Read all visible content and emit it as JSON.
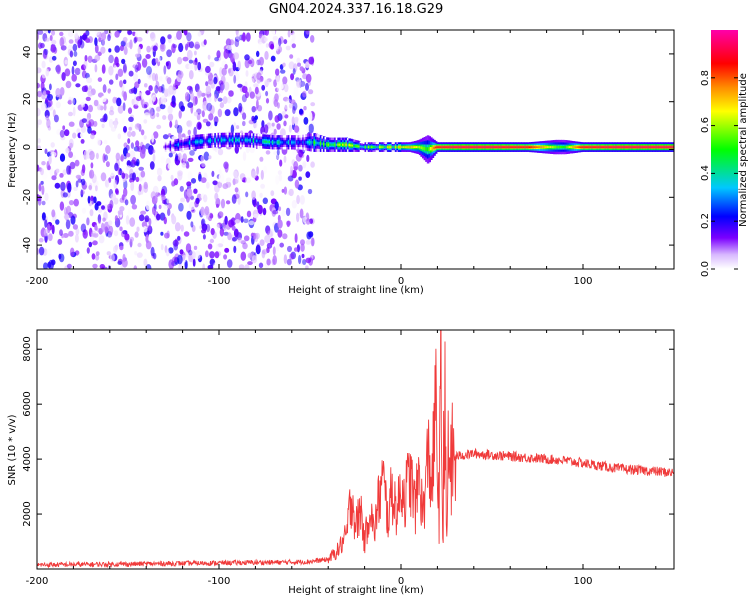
{
  "title": "GN04.2024.337.16.18.G29",
  "chart_data": [
    {
      "type": "heatmap",
      "xlabel": "Height of straight line (km)",
      "ylabel": "Frequency (Hz)",
      "xlim": [
        -200,
        150
      ],
      "ylim": [
        -50,
        50
      ],
      "xticks": [
        "-200",
        "-100",
        "0",
        "100"
      ],
      "yticks": [
        "-40",
        "-20",
        "0",
        "20",
        "40"
      ],
      "colorbar": {
        "label": "Normalized spectral amplitude",
        "range": [
          0,
          1
        ],
        "ticks": [
          "0.0",
          "0.2",
          "0.4",
          "0.6",
          "0.8"
        ],
        "colors": [
          "#ffffff",
          "#7b00ff",
          "#0000ff",
          "#00c8ff",
          "#00ff00",
          "#ffff00",
          "#ff8c00",
          "#ff0000",
          "#ff00aa"
        ]
      },
      "noise_region_x": [
        -200,
        -48
      ],
      "ridge_profile": {
        "x": [
          -130,
          -115,
          -100,
          -85,
          -70,
          -55,
          -48,
          -40,
          -30,
          -20,
          -10,
          0,
          5,
          10,
          15,
          20,
          30,
          50,
          70,
          85,
          90,
          100,
          120,
          150
        ],
        "center_hz": [
          1,
          3,
          4,
          4,
          3,
          3,
          3,
          2,
          2,
          1,
          1,
          1,
          1,
          1,
          0,
          1,
          1,
          1,
          1,
          1,
          1,
          1,
          1,
          1
        ],
        "halfwidth_hz": [
          2,
          3,
          3,
          3,
          3,
          3,
          4,
          3,
          3,
          2,
          2,
          2,
          2,
          3,
          6,
          2,
          2,
          2,
          2,
          3,
          3,
          2,
          2,
          2
        ],
        "amplitude": [
          0.2,
          0.3,
          0.3,
          0.35,
          0.35,
          0.3,
          0.4,
          0.45,
          0.55,
          0.5,
          0.55,
          0.6,
          0.7,
          0.6,
          0.5,
          0.9,
          0.95,
          0.95,
          0.9,
          0.55,
          0.5,
          0.9,
          0.95,
          0.95
        ]
      }
    },
    {
      "type": "line",
      "xlabel": "Height of straight line (km)",
      "ylabel": "SNR (10 * v/v)",
      "xlim": [
        -200,
        150
      ],
      "ylim": [
        0,
        8700
      ],
      "xticks": [
        "-200",
        "-100",
        "0",
        "100"
      ],
      "yticks": [
        "2000",
        "4000",
        "6000",
        "8000"
      ],
      "color": "#f03a3a",
      "series": [
        {
          "x": [
            -200,
            -150,
            -100,
            -60,
            -50,
            -40,
            -35,
            -30,
            -27,
            -25,
            -22,
            -20,
            -17,
            -15,
            -12,
            -10,
            -7,
            -5,
            -2,
            0,
            2,
            5,
            8,
            10,
            12,
            15,
            17,
            19,
            21,
            22,
            23,
            24,
            25,
            26,
            28,
            30,
            35,
            40,
            50,
            60,
            70,
            80,
            90,
            100,
            110,
            120,
            130,
            140,
            150
          ],
          "y": [
            150,
            180,
            220,
            250,
            270,
            350,
            650,
            1200,
            2800,
            1500,
            2200,
            900,
            2400,
            1300,
            2600,
            3200,
            1800,
            2900,
            2000,
            3100,
            2600,
            3400,
            2200,
            3600,
            1900,
            4200,
            3000,
            6000,
            2000,
            7600,
            400,
            8600,
            300,
            4200,
            3800,
            4100,
            4150,
            4200,
            4150,
            4100,
            4050,
            4000,
            3950,
            3850,
            3750,
            3650,
            3600,
            3550,
            3500
          ]
        }
      ]
    }
  ]
}
